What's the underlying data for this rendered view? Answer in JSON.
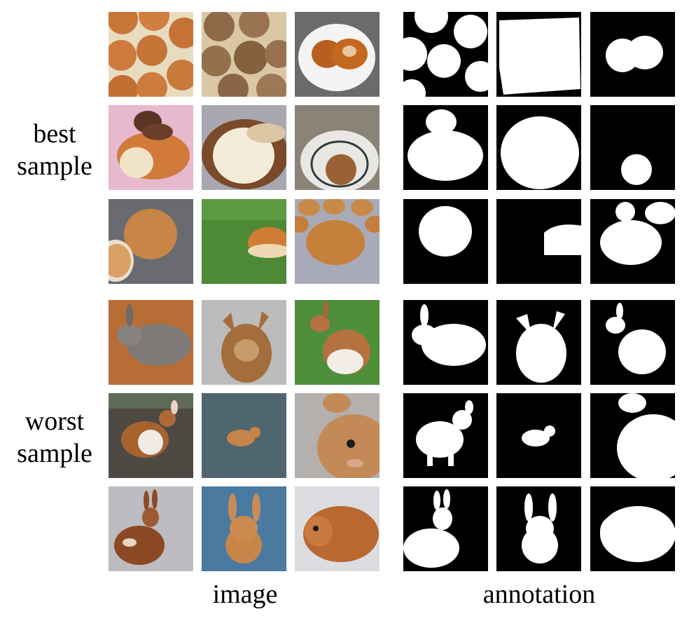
{
  "figure": {
    "row_groups": [
      {
        "label_line1": "best",
        "label_line2": "sample"
      },
      {
        "label_line1": "worst",
        "label_line2": "sample"
      }
    ],
    "columns": {
      "left": "image",
      "right": "annotation"
    }
  }
}
